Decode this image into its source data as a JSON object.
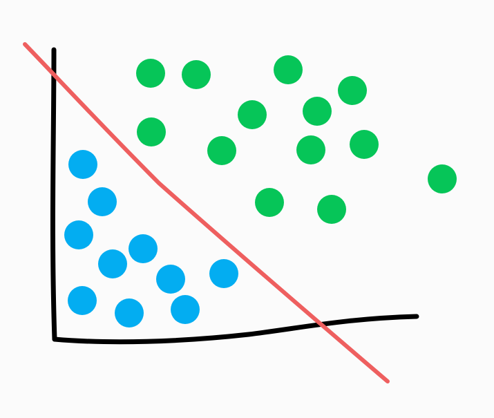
{
  "colors": {
    "background": "#fbfbfb",
    "axes": "#000000",
    "boundary": "#ee5f5f",
    "class_a": "#03adf1",
    "class_b": "#06c558"
  },
  "points": {
    "class_a": [
      [
        120,
        238
      ],
      [
        148,
        292
      ],
      [
        114,
        340
      ],
      [
        207,
        360
      ],
      [
        163,
        382
      ],
      [
        247,
        404
      ],
      [
        324,
        396
      ],
      [
        119,
        435
      ],
      [
        187,
        453
      ],
      [
        268,
        448
      ]
    ],
    "class_b": [
      [
        218,
        106
      ],
      [
        284,
        108
      ],
      [
        417,
        101
      ],
      [
        510,
        131
      ],
      [
        365,
        166
      ],
      [
        459,
        161
      ],
      [
        219,
        191
      ],
      [
        321,
        218
      ],
      [
        450,
        217
      ],
      [
        527,
        209
      ],
      [
        640,
        259
      ],
      [
        390,
        293
      ],
      [
        480,
        303
      ]
    ]
  }
}
